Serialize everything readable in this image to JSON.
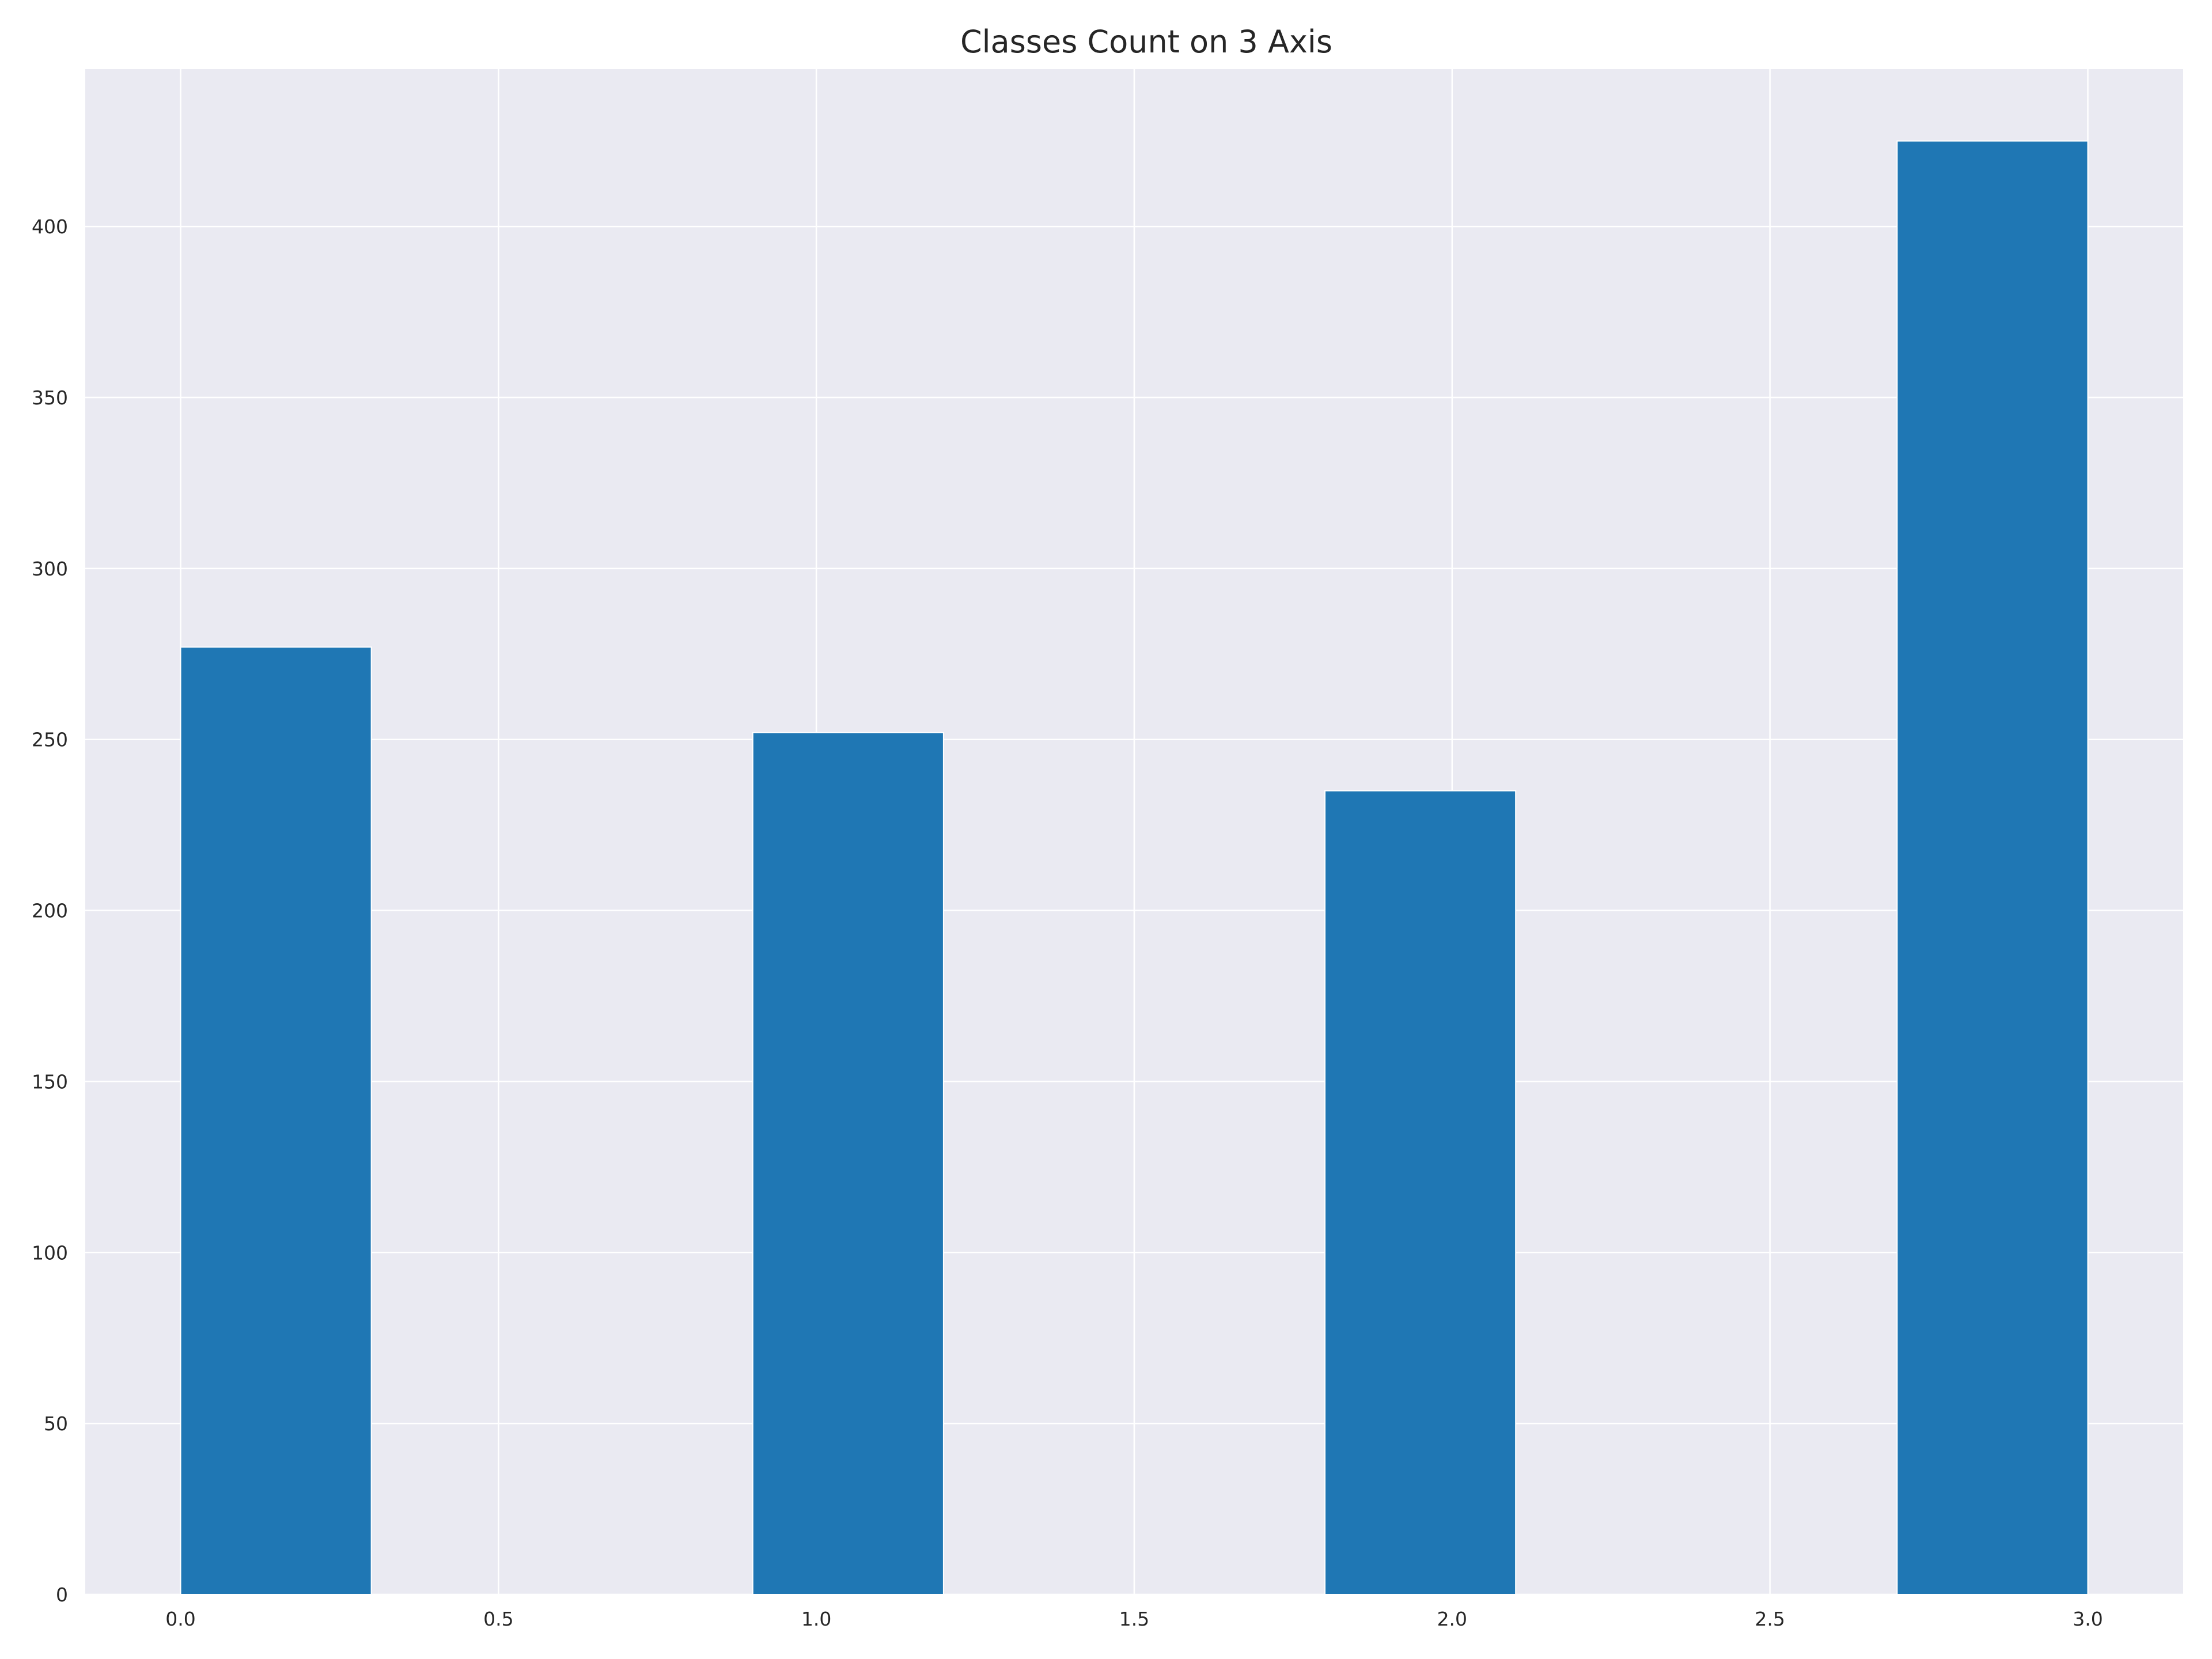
{
  "chart_data": {
    "type": "bar",
    "title": "Classes Count on 3 Axis",
    "xlabel": "",
    "ylabel": "",
    "x_bins": [
      {
        "start": 0.0,
        "end": 0.3,
        "value": 277
      },
      {
        "start": 0.9,
        "end": 1.2,
        "value": 252
      },
      {
        "start": 1.8,
        "end": 2.1,
        "value": 235
      },
      {
        "start": 2.7,
        "end": 3.0,
        "value": 425
      }
    ],
    "xlim": [
      -0.15,
      3.15
    ],
    "ylim": [
      0,
      446
    ],
    "x_ticks": [
      "0.0",
      "0.5",
      "1.0",
      "1.5",
      "2.0",
      "2.5",
      "3.0"
    ],
    "y_ticks": [
      "0",
      "50",
      "100",
      "150",
      "200",
      "250",
      "300",
      "350",
      "400"
    ],
    "grid": true,
    "legend": "none",
    "colors": {
      "bar": "#1f77b4",
      "plot_background": "#eaeaf2",
      "grid": "#ffffff",
      "text": "#262626"
    }
  }
}
